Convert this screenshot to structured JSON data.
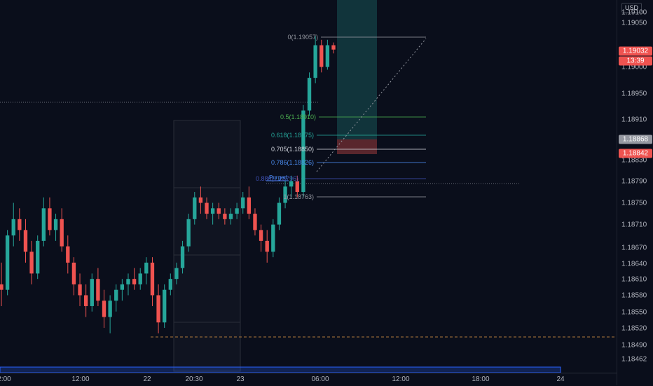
{
  "price_axis": {
    "currency": "USD",
    "ticks": [
      "1.19100",
      "1.19050",
      "1.19000",
      "1.18950",
      "1.18910",
      "1.18830",
      "1.18790",
      "1.18750",
      "1.18710",
      "1.18670",
      "1.18640",
      "1.18610",
      "1.18580",
      "1.18550",
      "1.18520",
      "1.18490",
      "1.18462"
    ],
    "current_price": "1.19032",
    "countdown": "13:39",
    "crosshair_price": "1.18868",
    "entry_price": "1.18842"
  },
  "time_axis": {
    "labels": [
      "2:00",
      "12:00",
      "22",
      "20:30",
      "23",
      "06:00",
      "12:00",
      "18:00",
      "24"
    ]
  },
  "fibonacci": {
    "levels": [
      {
        "label": "0(1.19057)",
        "color": "#9598a1"
      },
      {
        "label": "0.5(1.18910)",
        "color": "#4caf50"
      },
      {
        "label": "0.618(1.18875)",
        "color": "#26a69a"
      },
      {
        "label": "0.705(1.18850)",
        "color": "#d1d4dc"
      },
      {
        "label": "0.786(1.18826)",
        "color": "#4a8cf0"
      },
      {
        "label": "0.886(1.18796)",
        "color": "#3f51b5"
      },
      {
        "label": "1(1.18763)",
        "color": "#9598a1"
      }
    ],
    "purged_label": "Purged"
  },
  "colors": {
    "bull": "#26a69a",
    "bear": "#ef5350",
    "background": "#0a0e1b"
  },
  "chart_data": {
    "type": "candlestick",
    "instrument_currency": "USD",
    "ohlc": [
      [
        1.186,
        1.1864,
        1.1856,
        1.1859
      ],
      [
        1.1859,
        1.187,
        1.1858,
        1.1869
      ],
      [
        1.1869,
        1.1875,
        1.1867,
        1.1872
      ],
      [
        1.1872,
        1.1874,
        1.1868,
        1.187
      ],
      [
        1.187,
        1.1872,
        1.1864,
        1.1866
      ],
      [
        1.1866,
        1.1868,
        1.186,
        1.1862
      ],
      [
        1.1862,
        1.1869,
        1.1861,
        1.1868
      ],
      [
        1.1868,
        1.1876,
        1.1867,
        1.1874
      ],
      [
        1.1874,
        1.1876,
        1.1869,
        1.187
      ],
      [
        1.187,
        1.1873,
        1.1868,
        1.1872
      ],
      [
        1.1872,
        1.1874,
        1.1866,
        1.1867
      ],
      [
        1.1867,
        1.1869,
        1.1862,
        1.1864
      ],
      [
        1.1864,
        1.1865,
        1.1858,
        1.186
      ],
      [
        1.186,
        1.1862,
        1.1856,
        1.1858
      ],
      [
        1.1858,
        1.186,
        1.1854,
        1.1856
      ],
      [
        1.1856,
        1.1862,
        1.1855,
        1.1861
      ],
      [
        1.1861,
        1.1863,
        1.1856,
        1.1857
      ],
      [
        1.1857,
        1.1859,
        1.1852,
        1.1854
      ],
      [
        1.1854,
        1.1858,
        1.1851,
        1.1857
      ],
      [
        1.1857,
        1.186,
        1.1855,
        1.1859
      ],
      [
        1.1859,
        1.1861,
        1.1857,
        1.186
      ],
      [
        1.186,
        1.1862,
        1.1858,
        1.1861
      ],
      [
        1.1861,
        1.1863,
        1.1859,
        1.186
      ],
      [
        1.186,
        1.1863,
        1.1859,
        1.1862
      ],
      [
        1.1862,
        1.1865,
        1.186,
        1.1864
      ],
      [
        1.1864,
        1.1865,
        1.1856,
        1.1858
      ],
      [
        1.1858,
        1.186,
        1.1851,
        1.1853
      ],
      [
        1.1853,
        1.186,
        1.1852,
        1.1859
      ],
      [
        1.1859,
        1.1862,
        1.1858,
        1.1861
      ],
      [
        1.1861,
        1.1864,
        1.186,
        1.1863
      ],
      [
        1.1863,
        1.1868,
        1.1862,
        1.1867
      ],
      [
        1.1867,
        1.1873,
        1.1866,
        1.1872
      ],
      [
        1.1872,
        1.1877,
        1.1871,
        1.1876
      ],
      [
        1.1876,
        1.1878,
        1.1873,
        1.1875
      ],
      [
        1.1875,
        1.1876,
        1.1872,
        1.1873
      ],
      [
        1.1873,
        1.1875,
        1.1871,
        1.1874
      ],
      [
        1.1874,
        1.1875,
        1.1872,
        1.1873
      ],
      [
        1.1873,
        1.1874,
        1.1871,
        1.1872
      ],
      [
        1.1872,
        1.1874,
        1.1871,
        1.1873
      ],
      [
        1.1873,
        1.1875,
        1.1872,
        1.1874
      ],
      [
        1.1874,
        1.1877,
        1.1873,
        1.1876
      ],
      [
        1.1876,
        1.1878,
        1.1872,
        1.1873
      ],
      [
        1.1873,
        1.1874,
        1.1869,
        1.187
      ],
      [
        1.187,
        1.1871,
        1.1866,
        1.1868
      ],
      [
        1.1868,
        1.187,
        1.1864,
        1.1866
      ],
      [
        1.1866,
        1.1872,
        1.1865,
        1.1871
      ],
      [
        1.1871,
        1.1876,
        1.187,
        1.1875
      ],
      [
        1.1875,
        1.1879,
        1.1874,
        1.1878
      ],
      [
        1.1878,
        1.188,
        1.1876,
        1.1879
      ],
      [
        1.1879,
        1.188,
        1.1876,
        1.1877
      ],
      [
        1.1877,
        1.1893,
        1.1876,
        1.1892
      ],
      [
        1.1892,
        1.1899,
        1.1891,
        1.1898
      ],
      [
        1.1898,
        1.19057,
        1.1897,
        1.1904
      ],
      [
        1.1904,
        1.1905,
        1.1899,
        1.19
      ],
      [
        1.19,
        1.1905,
        1.18995,
        1.1904
      ],
      [
        1.1904,
        1.19045,
        1.19025,
        1.19032
      ]
    ]
  }
}
